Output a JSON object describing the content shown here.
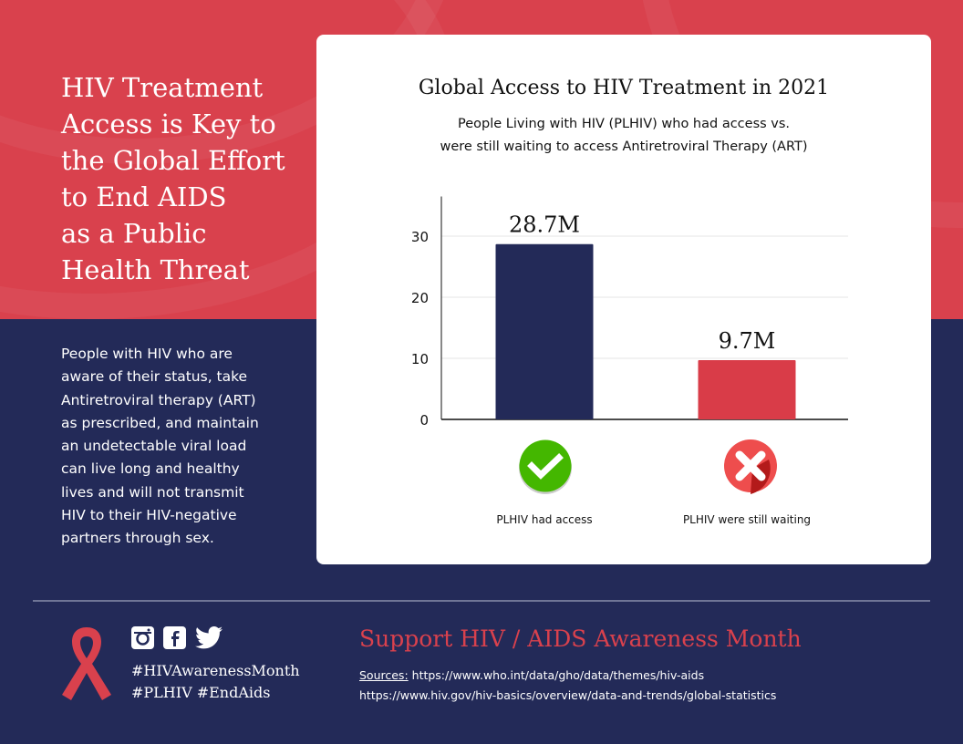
{
  "left": {
    "headline": "HIV Treatment\nAccess is Key to\nthe Global Effort\nto End AIDS\nas a Public\nHealth Threat",
    "body": "People with HIV who are aware of their status, take Antiretroviral therapy (ART) as prescribed, and maintain an undetectable viral load can live long and healthy lives and will not transmit HIV to their HIV-negative partners through sex."
  },
  "chart_data": {
    "type": "bar",
    "title": "Global Access to HIV Treatment in 2021",
    "subtitle": "People Living with HIV (PLHIV) who had access vs.\nwere still waiting to access Antiretroviral Therapy (ART)",
    "categories": [
      "PLHIV had access",
      "PLHIV were still waiting"
    ],
    "values": [
      28.7,
      9.7
    ],
    "data_labels": [
      "28.7M",
      "9.7M"
    ],
    "colors": [
      "#232a58",
      "#d93c48"
    ],
    "icons": [
      "green-check-icon",
      "red-x-icon"
    ],
    "yticks": [
      0,
      10,
      20,
      30
    ],
    "ylim": [
      0,
      36.5
    ],
    "grid": true,
    "xlabel": "",
    "ylabel": ""
  },
  "footer": {
    "social_icons": [
      "instagram-icon",
      "facebook-icon",
      "twitter-icon"
    ],
    "hashtags_line1": "#HIVAwarenessMonth",
    "hashtags_line2": "#PLHIV #EndAids",
    "support": "Support HIV / AIDS Awareness Month",
    "sources_label": "Sources:",
    "source1": "https://www.who.int/data/gho/data/themes/hiv-aids",
    "source2": "https://www.hiv.gov/hiv-basics/overview/data-and-trends/global-statistics"
  },
  "colors": {
    "red": "#d9414d",
    "navy": "#232a58"
  }
}
